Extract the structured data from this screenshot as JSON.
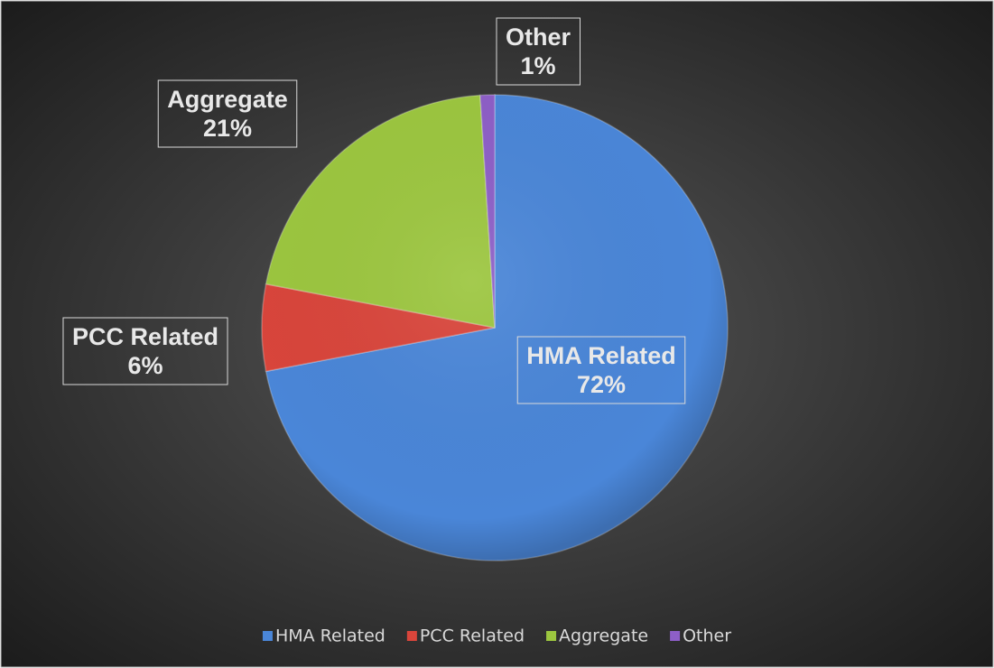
{
  "chart_data": {
    "type": "pie",
    "categories": [
      "HMA Related",
      "PCC Related",
      "Aggregate",
      "Other"
    ],
    "values": [
      72,
      6,
      21,
      1
    ],
    "value_labels": [
      "72%",
      "6%",
      "21%",
      "1%"
    ],
    "colors": [
      "#4a86d8",
      "#d9453b",
      "#9cc63f",
      "#8d5fc7"
    ],
    "legend": "bottom"
  }
}
